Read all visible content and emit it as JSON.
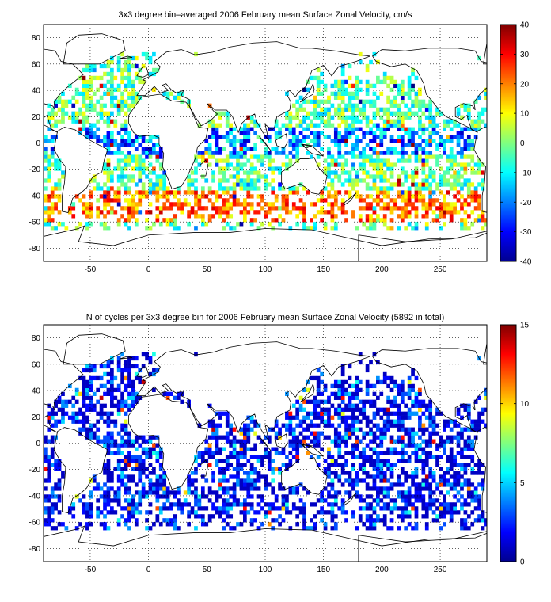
{
  "panels": [
    {
      "title": "3x3 degree bin–averaged 2006 February mean Surface Zonal Velocity, cm/s",
      "x_ticks": [
        "-50",
        "0",
        "50",
        "100",
        "150",
        "200",
        "250"
      ],
      "y_ticks": [
        "80",
        "60",
        "40",
        "20",
        "0",
        "-20",
        "-40",
        "-60",
        "-80"
      ],
      "colorbar": {
        "min": -40,
        "max": 40,
        "ticks": [
          "40",
          "30",
          "20",
          "10",
          "0",
          "-10",
          "-20",
          "-30",
          "-40"
        ]
      }
    },
    {
      "title": "N of cycles per 3x3 degree bin for 2006 February mean Surface Zonal Velocity (5892 in total)",
      "x_ticks": [
        "-50",
        "0",
        "50",
        "100",
        "150",
        "200",
        "250"
      ],
      "y_ticks": [
        "80",
        "60",
        "40",
        "20",
        "0",
        "-20",
        "-40",
        "-60",
        "-80"
      ],
      "colorbar": {
        "min": 0,
        "max": 15,
        "ticks": [
          "15",
          "10",
          "5",
          "0"
        ]
      }
    }
  ],
  "map": {
    "lon_range": [
      -90,
      290
    ],
    "lat_range": [
      -90,
      90
    ],
    "grid": true,
    "colormap": "jet",
    "bin_size_deg": 3
  }
}
